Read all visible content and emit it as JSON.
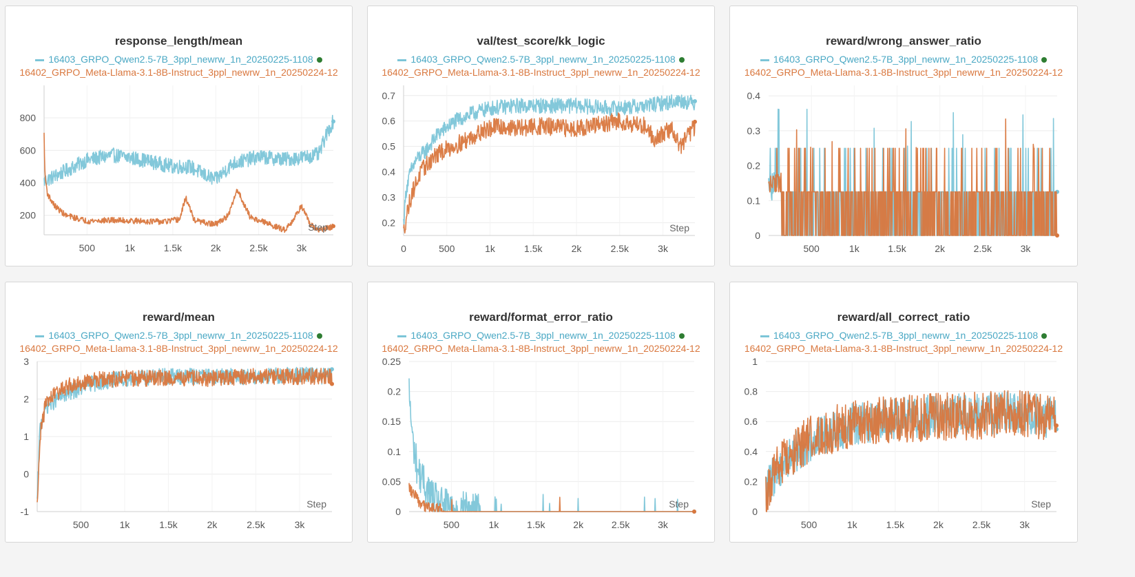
{
  "colors": {
    "qwen": "#7cc5d8",
    "llama": "#d9773e",
    "active_dot": "#2e7d32"
  },
  "chart_data": [
    {
      "type": "line",
      "title": "response_length/mean",
      "xlabel": "Step",
      "xlim": [
        0,
        3370
      ],
      "ylim": [
        80,
        1000
      ],
      "xticks": [
        500,
        1000,
        1500,
        2000,
        2500,
        3000
      ],
      "xtick_labels": [
        "500",
        "1k",
        "1.5k",
        "2k",
        "2.5k",
        "3k"
      ],
      "yticks": [
        200,
        400,
        600,
        800
      ],
      "ytick_labels": [
        "200",
        "400",
        "600",
        "800"
      ],
      "series": [
        {
          "name": "16403_GRPO_Qwen2.5-7B_3ppl_newrw_1n_20250225-1108",
          "color": "#7cc5d8",
          "x": [
            0,
            200,
            500,
            800,
            1000,
            1200,
            1500,
            1700,
            1900,
            2000,
            2200,
            2500,
            2800,
            3000,
            3200,
            3300,
            3370
          ],
          "y": [
            410,
            460,
            540,
            570,
            555,
            535,
            500,
            500,
            440,
            420,
            520,
            560,
            545,
            555,
            575,
            710,
            780
          ],
          "noise": 45
        },
        {
          "name": "16402_GRPO_Meta-Llama-3.1-8B-Instruct_3ppl_newrw_1n_20250224-12",
          "color": "#d9773e",
          "x": [
            0,
            10,
            40,
            120,
            250,
            500,
            800,
            1100,
            1400,
            1580,
            1650,
            1750,
            1900,
            2000,
            2150,
            2250,
            2400,
            2600,
            2800,
            2900,
            3000,
            3100,
            3200,
            3370
          ],
          "y": [
            700,
            450,
            330,
            260,
            200,
            165,
            170,
            165,
            160,
            175,
            310,
            170,
            150,
            145,
            200,
            360,
            190,
            150,
            110,
            170,
            260,
            140,
            110,
            130
          ],
          "noise": 18
        }
      ]
    },
    {
      "type": "line",
      "title": "val/test_score/kk_logic",
      "xlabel": "Step",
      "xlim": [
        0,
        3370
      ],
      "ylim": [
        0.15,
        0.74
      ],
      "xticks": [
        0,
        500,
        1000,
        1500,
        2000,
        2500,
        3000
      ],
      "xtick_labels": [
        "0",
        "500",
        "1k",
        "1.5k",
        "2k",
        "2.5k",
        "3k"
      ],
      "yticks": [
        0.2,
        0.3,
        0.4,
        0.5,
        0.6,
        0.7
      ],
      "ytick_labels": [
        "0.2",
        "0.3",
        "0.4",
        "0.5",
        "0.6",
        "0.7"
      ],
      "series": [
        {
          "name": "16403_GRPO_Qwen2.5-7B_3ppl_newrw_1n_20250225-1108",
          "color": "#7cc5d8",
          "x": [
            0,
            30,
            80,
            150,
            250,
            400,
            600,
            800,
            1000,
            1300,
            1600,
            2000,
            2400,
            2800,
            3000,
            3200,
            3370
          ],
          "y": [
            0.2,
            0.33,
            0.4,
            0.45,
            0.48,
            0.55,
            0.6,
            0.63,
            0.65,
            0.66,
            0.66,
            0.66,
            0.65,
            0.66,
            0.67,
            0.68,
            0.67
          ],
          "noise": 0.03
        },
        {
          "name": "16402_GRPO_Meta-Llama-3.1-8B-Instruct_3ppl_newrw_1n_20250224-12",
          "color": "#d9773e",
          "x": [
            0,
            40,
            100,
            200,
            350,
            500,
            700,
            900,
            1100,
            1300,
            1600,
            1900,
            2200,
            2500,
            2800,
            2900,
            3100,
            3200,
            3370
          ],
          "y": [
            0.16,
            0.24,
            0.32,
            0.4,
            0.46,
            0.49,
            0.52,
            0.56,
            0.58,
            0.57,
            0.58,
            0.57,
            0.58,
            0.6,
            0.58,
            0.53,
            0.57,
            0.5,
            0.58
          ],
          "noise": 0.035
        }
      ]
    },
    {
      "type": "line",
      "title": "reward/wrong_answer_ratio",
      "xlabel": "",
      "xlim": [
        0,
        3370
      ],
      "ylim": [
        0,
        0.43
      ],
      "xticks": [
        500,
        1000,
        1500,
        2000,
        2500,
        3000
      ],
      "xtick_labels": [
        "500",
        "1k",
        "1.5k",
        "2k",
        "2.5k",
        "3k"
      ],
      "yticks": [
        0,
        0.1,
        0.2,
        0.3,
        0.4
      ],
      "ytick_labels": [
        "0",
        "0.1",
        "0.2",
        "0.3",
        "0.4"
      ],
      "series": [
        {
          "name": "16403_GRPO_Qwen2.5-7B_3ppl_newrw_1n_20250225-1108",
          "color": "#7cc5d8",
          "x": [
            0,
            300,
            600,
            1000,
            2000,
            3000,
            3370
          ],
          "y": [
            0.06,
            0.07,
            0.06,
            0.06,
            0.06,
            0.06,
            0.06
          ],
          "noise": 0.06
        },
        {
          "name": "16402_GRPO_Meta-Llama-3.1-8B-Instruct_3ppl_newrw_1n_20250224-12",
          "color": "#d9773e",
          "x": [
            0,
            200,
            500,
            1000,
            2000,
            3000,
            3370
          ],
          "y": [
            0.09,
            0.08,
            0.06,
            0.06,
            0.06,
            0.06,
            0.06
          ],
          "noise": 0.06
        }
      ]
    },
    {
      "type": "line",
      "title": "reward/mean",
      "xlabel": "Step",
      "xlim": [
        0,
        3370
      ],
      "ylim": [
        -1,
        3
      ],
      "xticks": [
        500,
        1000,
        1500,
        2000,
        2500,
        3000
      ],
      "xtick_labels": [
        "500",
        "1k",
        "1.5k",
        "2k",
        "2.5k",
        "3k"
      ],
      "yticks": [
        -1,
        0,
        1,
        2,
        3
      ],
      "ytick_labels": [
        "-1",
        "0",
        "1",
        "2",
        "3"
      ],
      "series": [
        {
          "name": "16403_GRPO_Qwen2.5-7B_3ppl_newrw_1n_20250225-1108",
          "color": "#7cc5d8",
          "x": [
            0,
            30,
            100,
            300,
            600,
            1000,
            1500,
            2000,
            2500,
            3000,
            3370
          ],
          "y": [
            -0.8,
            1.2,
            1.8,
            2.1,
            2.4,
            2.55,
            2.6,
            2.6,
            2.6,
            2.65,
            2.6
          ],
          "noise": 0.22
        },
        {
          "name": "16402_GRPO_Meta-Llama-3.1-8B-Instruct_3ppl_newrw_1n_20250224-12",
          "color": "#d9773e",
          "x": [
            0,
            30,
            100,
            300,
            600,
            1000,
            1500,
            2000,
            2500,
            3000,
            3370
          ],
          "y": [
            -0.9,
            1.0,
            1.9,
            2.3,
            2.5,
            2.55,
            2.55,
            2.55,
            2.6,
            2.6,
            2.6
          ],
          "noise": 0.22
        }
      ]
    },
    {
      "type": "line",
      "title": "reward/format_error_ratio",
      "xlabel": "Step",
      "xlim": [
        0,
        3370
      ],
      "ylim": [
        0,
        0.25
      ],
      "xticks": [
        500,
        1000,
        1500,
        2000,
        2500,
        3000
      ],
      "xtick_labels": [
        "500",
        "1k",
        "1.5k",
        "2k",
        "2.5k",
        "3k"
      ],
      "yticks": [
        0,
        0.05,
        0.1,
        0.15,
        0.2,
        0.25
      ],
      "ytick_labels": [
        "0",
        "0.05",
        "0.1",
        "0.15",
        "0.2",
        "0.25"
      ],
      "series": [
        {
          "name": "16403_GRPO_Qwen2.5-7B_3ppl_newrw_1n_20250225-1108",
          "color": "#7cc5d8",
          "x": [
            0,
            40,
            100,
            200,
            300,
            400,
            600,
            1000,
            3370
          ],
          "y": [
            0.2,
            0.12,
            0.07,
            0.04,
            0.02,
            0.01,
            0.005,
            0,
            0
          ],
          "noise": 0.03
        },
        {
          "name": "16402_GRPO_Meta-Llama-3.1-8B-Instruct_3ppl_newrw_1n_20250224-12",
          "color": "#d9773e",
          "x": [
            0,
            50,
            150,
            300,
            500,
            1000,
            3370
          ],
          "y": [
            0.04,
            0.03,
            0.01,
            0.005,
            0,
            0,
            0
          ],
          "noise": 0.01
        }
      ]
    },
    {
      "type": "line",
      "title": "reward/all_correct_ratio",
      "xlabel": "Step",
      "xlim": [
        0,
        3370
      ],
      "ylim": [
        0,
        1
      ],
      "xticks": [
        500,
        1000,
        1500,
        2000,
        2500,
        3000
      ],
      "xtick_labels": [
        "500",
        "1k",
        "1.5k",
        "2k",
        "2.5k",
        "3k"
      ],
      "yticks": [
        0,
        0.2,
        0.4,
        0.6,
        0.8,
        1
      ],
      "ytick_labels": [
        "0",
        "0.2",
        "0.4",
        "0.6",
        "0.8",
        "1"
      ],
      "series": [
        {
          "name": "16403_GRPO_Qwen2.5-7B_3ppl_newrw_1n_20250225-1108",
          "color": "#7cc5d8",
          "x": [
            0,
            100,
            300,
            600,
            1000,
            1500,
            2000,
            2500,
            3000,
            3370
          ],
          "y": [
            0.12,
            0.25,
            0.38,
            0.5,
            0.58,
            0.62,
            0.64,
            0.65,
            0.66,
            0.62
          ],
          "noise": 0.14
        },
        {
          "name": "16402_GRPO_Meta-Llama-3.1-8B-Instruct_3ppl_newrw_1n_20250224-12",
          "color": "#d9773e",
          "x": [
            0,
            100,
            300,
            600,
            1000,
            1500,
            2000,
            2500,
            3000,
            3370
          ],
          "y": [
            0.1,
            0.25,
            0.4,
            0.52,
            0.58,
            0.62,
            0.63,
            0.64,
            0.65,
            0.62
          ],
          "noise": 0.16
        }
      ]
    }
  ]
}
